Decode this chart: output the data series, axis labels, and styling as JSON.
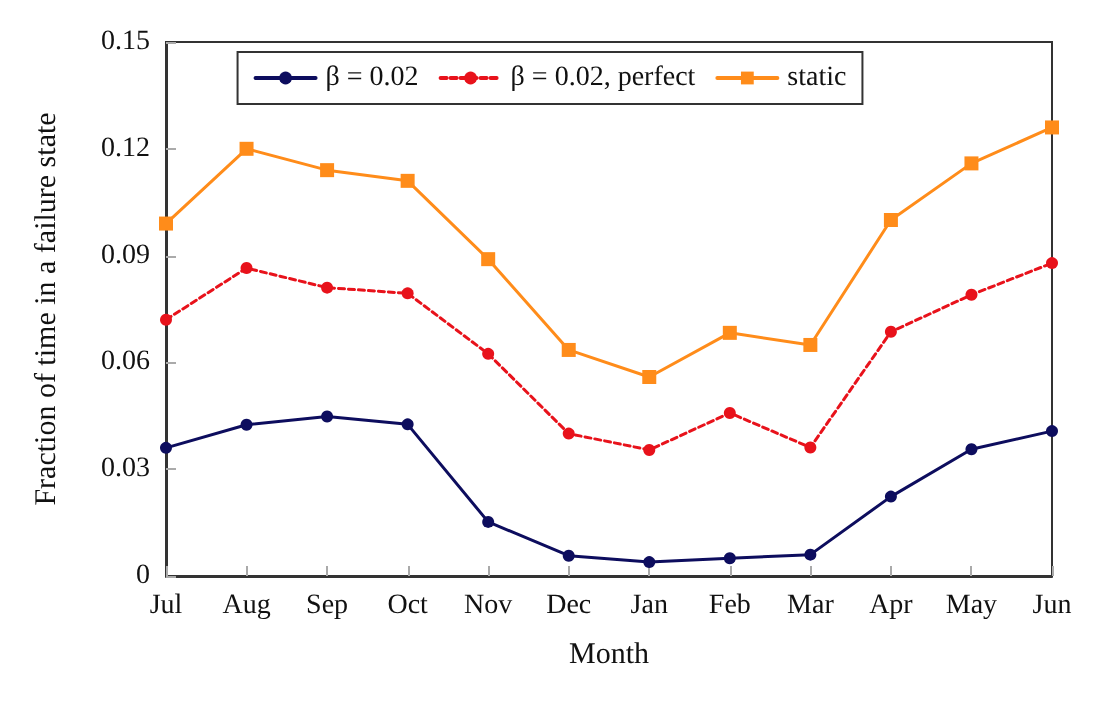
{
  "chart_data": {
    "type": "line",
    "xlabel": "Month",
    "ylabel": "Fraction of time in a failure state",
    "categories": [
      "Jul",
      "Aug",
      "Sep",
      "Oct",
      "Nov",
      "Dec",
      "Jan",
      "Feb",
      "Mar",
      "Apr",
      "May",
      "Jun"
    ],
    "ylim": [
      0,
      0.15
    ],
    "yticks": [
      {
        "value": 0,
        "label": "0"
      },
      0.03,
      0.06,
      0.09,
      0.12,
      0.15
    ],
    "grid": false,
    "legend": "top",
    "series": [
      {
        "name": "β = 0.02",
        "color": "#0d0d5e",
        "marker": "circle",
        "line_style": "solid",
        "values": [
          0.036,
          0.0425,
          0.0448,
          0.0426,
          0.0152,
          0.0057,
          0.0039,
          0.005,
          0.006,
          0.0223,
          0.0356,
          0.0407
        ]
      },
      {
        "name": "β = 0.02, perfect",
        "color": "#e8121b",
        "marker": "circle",
        "line_style": "dotted",
        "values": [
          0.072,
          0.0865,
          0.081,
          0.0794,
          0.0624,
          0.04,
          0.0354,
          0.0458,
          0.0361,
          0.0686,
          0.079,
          0.0879
        ]
      },
      {
        "name": "static",
        "color": "#ff8c1a",
        "marker": "square",
        "line_style": "solid",
        "values": [
          0.099,
          0.12,
          0.114,
          0.111,
          0.089,
          0.0635,
          0.0559,
          0.0683,
          0.0649,
          0.1,
          0.1159,
          0.126
        ]
      }
    ]
  }
}
